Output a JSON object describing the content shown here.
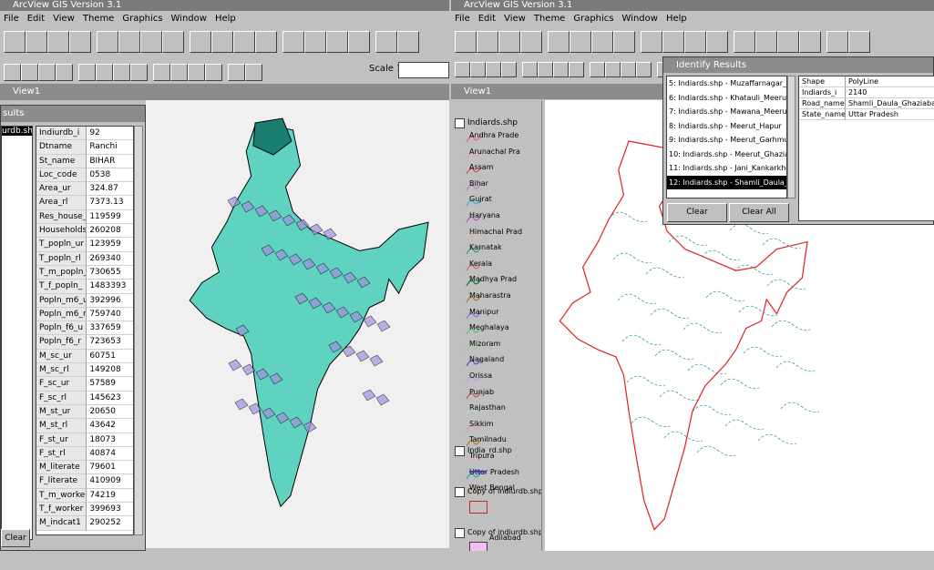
{
  "left_window": {
    "title": "ArcView GIS Version 3.1",
    "menu": [
      "File",
      "Edit",
      "View",
      "Theme",
      "Graphics",
      "Window",
      "Help"
    ],
    "scale_label": "Scale 1:",
    "view_title": "View1",
    "results": {
      "title": "sults",
      "list_item": "urdb.sh",
      "clear_all": "Clear All",
      "rows": [
        [
          "Indiurdb_i",
          "92"
        ],
        [
          "Dtname",
          "Ranchi"
        ],
        [
          "St_name",
          "BIHAR"
        ],
        [
          "Loc_code",
          "0538"
        ],
        [
          "Area_ur",
          "324.87"
        ],
        [
          "Area_rl",
          "7373.13"
        ],
        [
          "Res_house_",
          "119599"
        ],
        [
          "Households",
          "260208"
        ],
        [
          "T_popln_ur",
          "123959"
        ],
        [
          "T_popln_rl",
          "269340"
        ],
        [
          "T_m_popln_",
          "730655"
        ],
        [
          "T_f_popln_",
          "1483393"
        ],
        [
          "Popln_m6_u",
          "392996"
        ],
        [
          "Popln_m6_r",
          "759740"
        ],
        [
          "Popln_f6_u",
          "337659"
        ],
        [
          "Popln_f6_r",
          "723653"
        ],
        [
          "M_sc_ur",
          "60751"
        ],
        [
          "M_sc_rl",
          "149208"
        ],
        [
          "F_sc_ur",
          "57589"
        ],
        [
          "F_sc_rl",
          "145623"
        ],
        [
          "M_st_ur",
          "20650"
        ],
        [
          "M_st_rl",
          "43642"
        ],
        [
          "F_st_ur",
          "18073"
        ],
        [
          "F_st_rl",
          "40874"
        ],
        [
          "M_literate",
          "79601"
        ],
        [
          "F_literate",
          "410909"
        ],
        [
          "T_m_worker",
          "74219"
        ],
        [
          "T_f_worker",
          "399693"
        ],
        [
          "M_indcat1",
          "290252"
        ]
      ]
    }
  },
  "right_window": {
    "title": "ArcView GIS Version 3.1",
    "menu": [
      "File",
      "Edit",
      "View",
      "Theme",
      "Graphics",
      "Window",
      "Help"
    ],
    "view_title": "View1",
    "legend": {
      "theme": "Indiards.shp",
      "states": [
        {
          "name": "Andhra Prade",
          "color": "#e07080"
        },
        {
          "name": "Arunachal Pra",
          "color": "#e0a0c0"
        },
        {
          "name": "Assam",
          "color": "#d06060"
        },
        {
          "name": "Bihar",
          "color": "#c080c0"
        },
        {
          "name": "Gujrat",
          "color": "#40b0d0"
        },
        {
          "name": "Haryana",
          "color": "#b060b0"
        },
        {
          "name": "Himachal Prad",
          "color": "#e0c0a0"
        },
        {
          "name": "Karnatak",
          "color": "#40a080"
        },
        {
          "name": "Kerala",
          "color": "#d07070"
        },
        {
          "name": "Madhya Prad",
          "color": "#208040"
        },
        {
          "name": "Maharastra",
          "color": "#a08040"
        },
        {
          "name": "Manipur",
          "color": "#8080d0"
        },
        {
          "name": "Meghalaya",
          "color": "#60c080"
        },
        {
          "name": "Mizoram",
          "color": "#a0d080"
        },
        {
          "name": "Nagaland",
          "color": "#6060c0"
        },
        {
          "name": "Orissa",
          "color": "#c0a0e0"
        },
        {
          "name": "Punjab",
          "color": "#c06060"
        },
        {
          "name": "Rajasthan",
          "color": "#a0e0c0"
        },
        {
          "name": "Sikkim",
          "color": "#e0a0a0"
        },
        {
          "name": "Tamilnadu",
          "color": "#b08040"
        },
        {
          "name": "Tripura",
          "color": "#e0b0d0"
        },
        {
          "name": "Uttar Pradesh",
          "color": "#40a0c0"
        },
        {
          "name": "West Bengal",
          "color": "#c0a080"
        }
      ],
      "themes": [
        "India_rd.shp",
        "Copy of indiurdb.shp",
        "Copy of indiurdb.shp"
      ],
      "class_label": "Adilabad"
    },
    "identify": {
      "title": "Identify Results",
      "items": [
        "5: Indiards.shp - Muzaffarnagar_Khat",
        "6: Indiards.shp - Khatauli_Meerut",
        "7: Indiards.shp - Mawana_Meerut",
        "8: Indiards.shp - Meerut_Hapur",
        "9: Indiards.shp - Meerut_Garhmuktes",
        "10: Indiards.shp - Meerut_Ghaziabad",
        "11: Indiards.shp - Jani_Kankarkhera",
        "12: Indiards.shp - Shamli_Daula_Gha"
      ],
      "clear": "Clear",
      "clear_all": "Clear All",
      "attributes": [
        [
          "Shape",
          "PolyLine"
        ],
        [
          "Indiards_i",
          "2140"
        ],
        [
          "Road_name",
          "Shamli_Daula_Ghaziabad"
        ],
        [
          "State_name",
          "Uttar Pradesh"
        ]
      ]
    }
  }
}
